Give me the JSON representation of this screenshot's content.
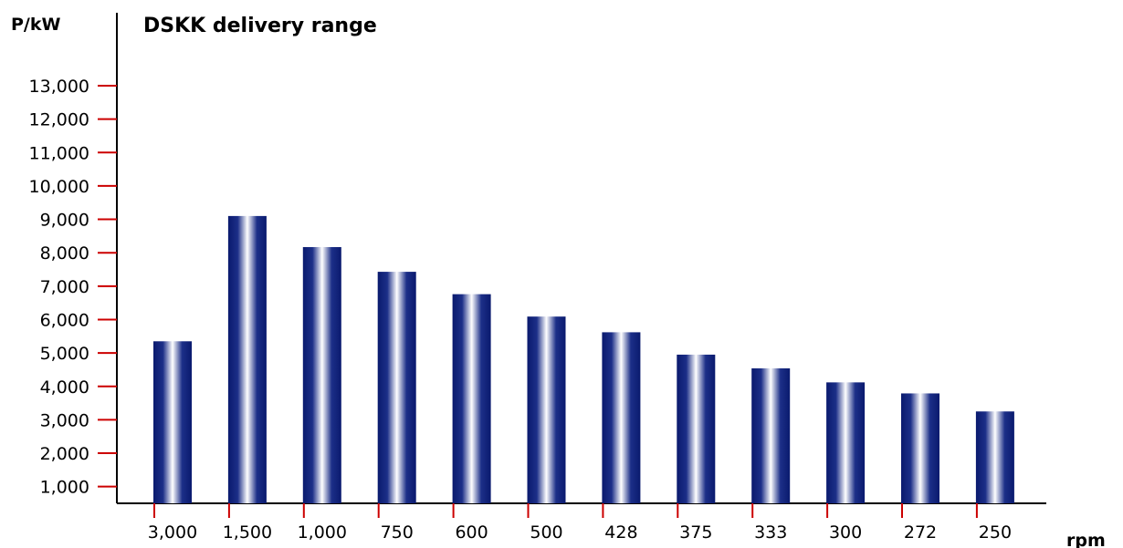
{
  "chart_data": {
    "type": "bar",
    "title": "DSKK delivery range",
    "ylabel": "P/kW",
    "xlabel": "rpm",
    "categories": [
      "3,000",
      "1,500",
      "1,000",
      "750",
      "600",
      "500",
      "428",
      "375",
      "333",
      "300",
      "272",
      "250"
    ],
    "values": [
      5350,
      9100,
      8170,
      7430,
      6760,
      6090,
      5620,
      4950,
      4540,
      4120,
      3790,
      3250
    ],
    "ylim": [
      0,
      13000
    ],
    "yticks": [
      1000,
      2000,
      3000,
      4000,
      5000,
      6000,
      7000,
      8000,
      9000,
      10000,
      11000,
      12000,
      13000
    ],
    "ytick_labels": [
      "1,000",
      "2,000",
      "3,000",
      "4,000",
      "5,000",
      "6,000",
      "7,000",
      "8,000",
      "9,000",
      "10,000",
      "11,000",
      "12,000",
      "13,000"
    ],
    "grid": false,
    "legend": "none",
    "colors": {
      "bar_dark": "#0a1a6e",
      "bar_light": "#ffffff",
      "tick_marks": "#cc0000",
      "axis": "#000000"
    }
  }
}
